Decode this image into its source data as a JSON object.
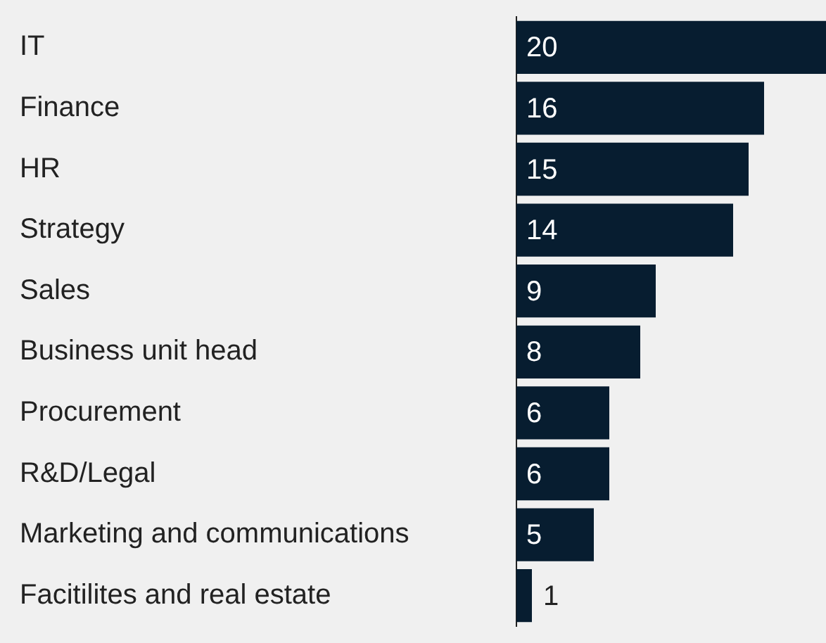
{
  "chart_data": {
    "type": "bar",
    "orientation": "horizontal",
    "categories": [
      "IT",
      "Finance",
      "HR",
      "Strategy",
      "Sales",
      "Business unit head",
      "Procurement",
      "R&D/Legal",
      "Marketing and communications",
      "Facitilites and real estate"
    ],
    "values": [
      20,
      16,
      15,
      14,
      9,
      8,
      6,
      6,
      5,
      1
    ],
    "color": "#071d30",
    "data_labels": true,
    "grid": false,
    "legend": false
  }
}
